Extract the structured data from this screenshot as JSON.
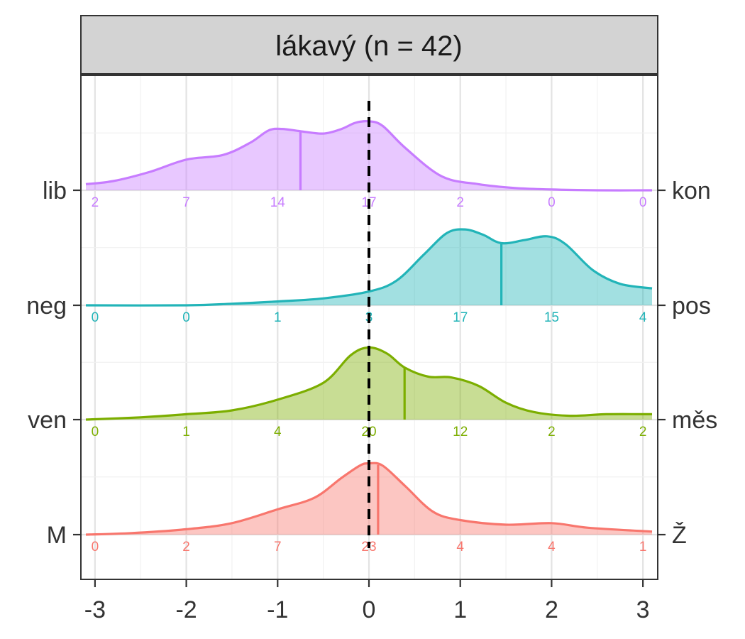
{
  "chart_data": {
    "type": "ridgeline-density",
    "title": "lákavý (n = 42)",
    "xlim": [
      -3.1,
      3.1
    ],
    "x_ticks": [
      -3,
      -2,
      -1,
      0,
      1,
      2,
      3
    ],
    "x_tick_labels": [
      "-3",
      "-2",
      "-1",
      "0",
      "1",
      "2",
      "3"
    ],
    "reference_line_x": 0,
    "grid": true,
    "count_positions": [
      -3,
      -2,
      -1,
      0,
      1,
      2,
      3
    ],
    "series": [
      {
        "left_label": "lib",
        "right_label": "kon",
        "color": "#C77CFF",
        "mean": -0.75,
        "counts": [
          "2",
          "7",
          "14",
          "17",
          "2",
          "0",
          "0"
        ],
        "density": [
          [
            -3.1,
            0.08
          ],
          [
            -2.8,
            0.12
          ],
          [
            -2.4,
            0.24
          ],
          [
            -2.0,
            0.4
          ],
          [
            -1.6,
            0.46
          ],
          [
            -1.3,
            0.62
          ],
          [
            -1.1,
            0.78
          ],
          [
            -0.95,
            0.8
          ],
          [
            -0.75,
            0.77
          ],
          [
            -0.5,
            0.74
          ],
          [
            -0.3,
            0.8
          ],
          [
            -0.15,
            0.88
          ],
          [
            0.0,
            0.9
          ],
          [
            0.15,
            0.84
          ],
          [
            0.4,
            0.55
          ],
          [
            0.8,
            0.18
          ],
          [
            1.2,
            0.08
          ],
          [
            1.6,
            0.03
          ],
          [
            2.0,
            0.01
          ],
          [
            2.5,
            0.0
          ],
          [
            3.1,
            0.0
          ]
        ]
      },
      {
        "left_label": "neg",
        "right_label": "pos",
        "color": "#22B4B8",
        "mean": 1.45,
        "counts": [
          "0",
          "0",
          "1",
          "3",
          "17",
          "15",
          "4"
        ],
        "density": [
          [
            -3.1,
            0.0
          ],
          [
            -2.0,
            0.0
          ],
          [
            -1.5,
            0.02
          ],
          [
            -1.0,
            0.05
          ],
          [
            -0.5,
            0.09
          ],
          [
            0.0,
            0.18
          ],
          [
            0.3,
            0.32
          ],
          [
            0.6,
            0.66
          ],
          [
            0.85,
            0.94
          ],
          [
            1.05,
            0.99
          ],
          [
            1.25,
            0.92
          ],
          [
            1.45,
            0.81
          ],
          [
            1.7,
            0.85
          ],
          [
            1.95,
            0.9
          ],
          [
            2.15,
            0.8
          ],
          [
            2.45,
            0.46
          ],
          [
            2.75,
            0.28
          ],
          [
            3.1,
            0.22
          ]
        ]
      },
      {
        "left_label": "ven",
        "right_label": "měs",
        "color": "#7CAE00",
        "mean": 0.39,
        "counts": [
          "0",
          "1",
          "4",
          "20",
          "12",
          "2",
          "2"
        ],
        "density": [
          [
            -3.1,
            0.0
          ],
          [
            -2.5,
            0.03
          ],
          [
            -2.0,
            0.07
          ],
          [
            -1.5,
            0.12
          ],
          [
            -1.0,
            0.26
          ],
          [
            -0.5,
            0.48
          ],
          [
            -0.2,
            0.84
          ],
          [
            0.0,
            0.94
          ],
          [
            0.2,
            0.86
          ],
          [
            0.39,
            0.68
          ],
          [
            0.65,
            0.56
          ],
          [
            0.9,
            0.55
          ],
          [
            1.2,
            0.44
          ],
          [
            1.5,
            0.22
          ],
          [
            1.8,
            0.1
          ],
          [
            2.2,
            0.05
          ],
          [
            2.6,
            0.07
          ],
          [
            3.1,
            0.07
          ]
        ]
      },
      {
        "left_label": "M",
        "right_label": "Ž",
        "color": "#F8766D",
        "mean": 0.1,
        "counts": [
          "0",
          "2",
          "7",
          "23",
          "4",
          "4",
          "1"
        ],
        "density": [
          [
            -3.1,
            0.0
          ],
          [
            -2.6,
            0.02
          ],
          [
            -2.0,
            0.07
          ],
          [
            -1.5,
            0.15
          ],
          [
            -1.0,
            0.33
          ],
          [
            -0.6,
            0.48
          ],
          [
            -0.3,
            0.74
          ],
          [
            -0.1,
            0.9
          ],
          [
            0.0,
            0.93
          ],
          [
            0.15,
            0.9
          ],
          [
            0.4,
            0.63
          ],
          [
            0.7,
            0.3
          ],
          [
            1.0,
            0.19
          ],
          [
            1.5,
            0.13
          ],
          [
            2.0,
            0.15
          ],
          [
            2.4,
            0.09
          ],
          [
            3.1,
            0.04
          ]
        ]
      }
    ]
  }
}
